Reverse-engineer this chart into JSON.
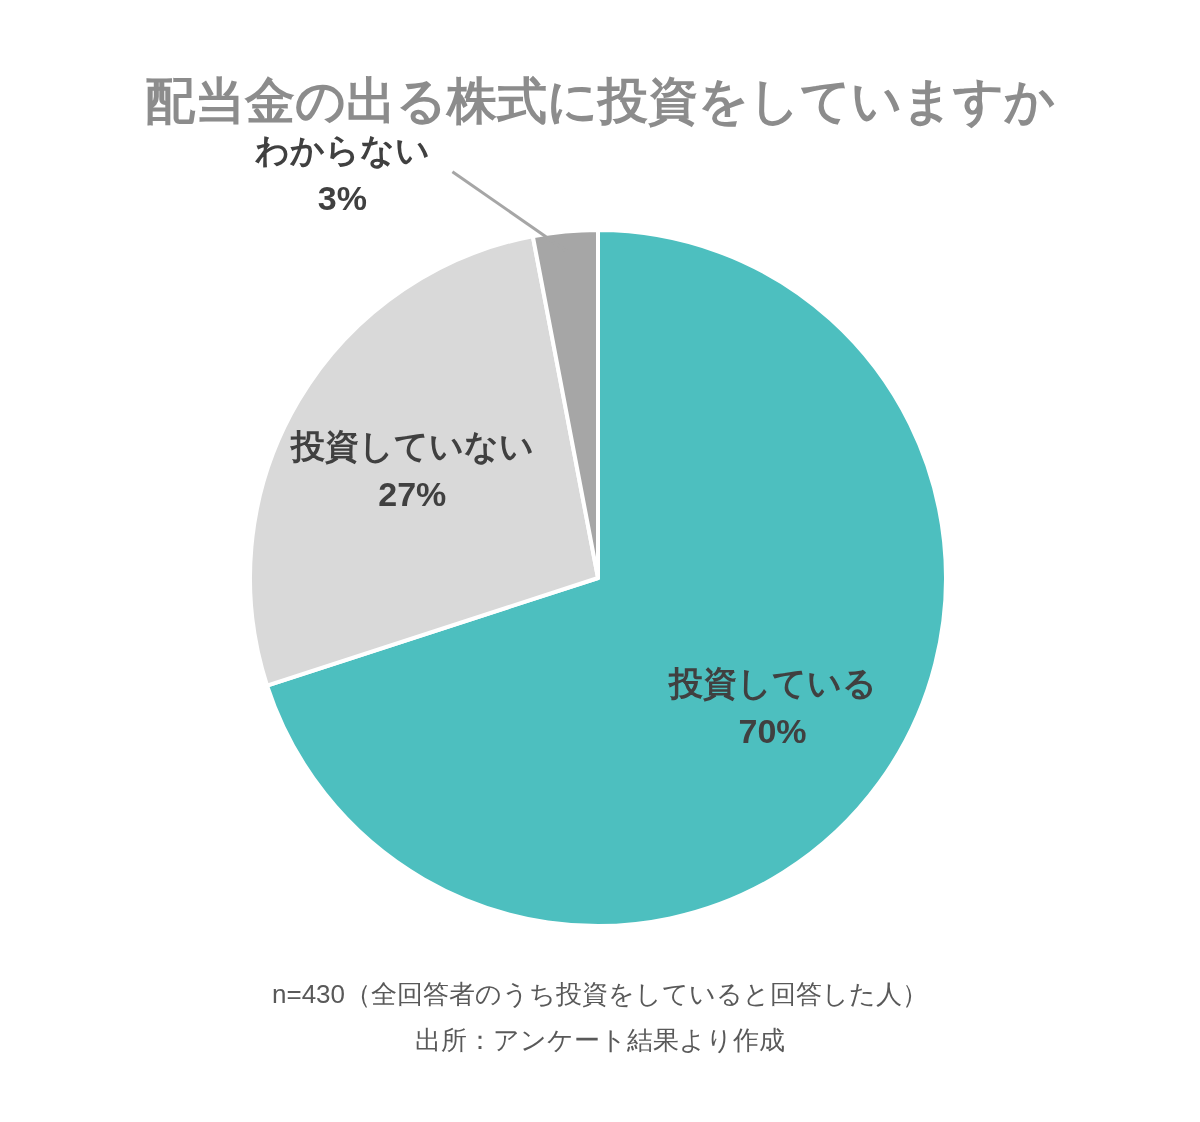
{
  "chart_data": {
    "type": "pie",
    "title": "配当金の出る株式に投資をしていますか",
    "categories": [
      "投資している",
      "投資していない",
      "わからない"
    ],
    "values": [
      70,
      27,
      3
    ],
    "colors": [
      "#4dbfbf",
      "#d9d9d9",
      "#a6a6a6"
    ],
    "value_labels": [
      "70%",
      "27%",
      "3%"
    ],
    "annotations": [
      "n=430（全回答者のうち投資をしていると回答した人）",
      "出所：アンケート結果より作成"
    ]
  }
}
